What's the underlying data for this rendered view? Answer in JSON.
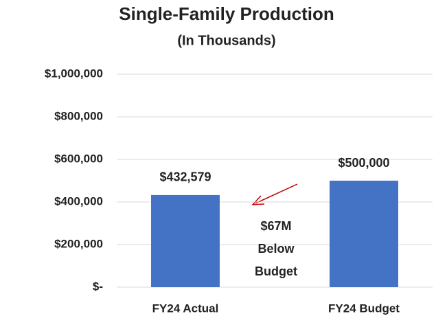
{
  "chart_data": {
    "type": "bar",
    "title": "Single-Family Production",
    "subtitle": "(In Thousands)",
    "categories": [
      "FY24 Actual",
      "FY24 Budget"
    ],
    "values": [
      432579,
      500000
    ],
    "value_labels": [
      "$432,579",
      "$500,000"
    ],
    "color": "#4472c4",
    "ylim": [
      0,
      1000000
    ],
    "yticks": [
      {
        "value": 0,
        "label": "$-"
      },
      {
        "value": 200000,
        "label": "$200,000"
      },
      {
        "value": 400000,
        "label": "$400,000"
      },
      {
        "value": 600000,
        "label": "$600,000"
      },
      {
        "value": 800000,
        "label": "$800,000"
      },
      {
        "value": 1000000,
        "label": "$1,000,000"
      }
    ],
    "grid": true,
    "annotation": [
      "$67M",
      "Below",
      "Budget"
    ]
  }
}
